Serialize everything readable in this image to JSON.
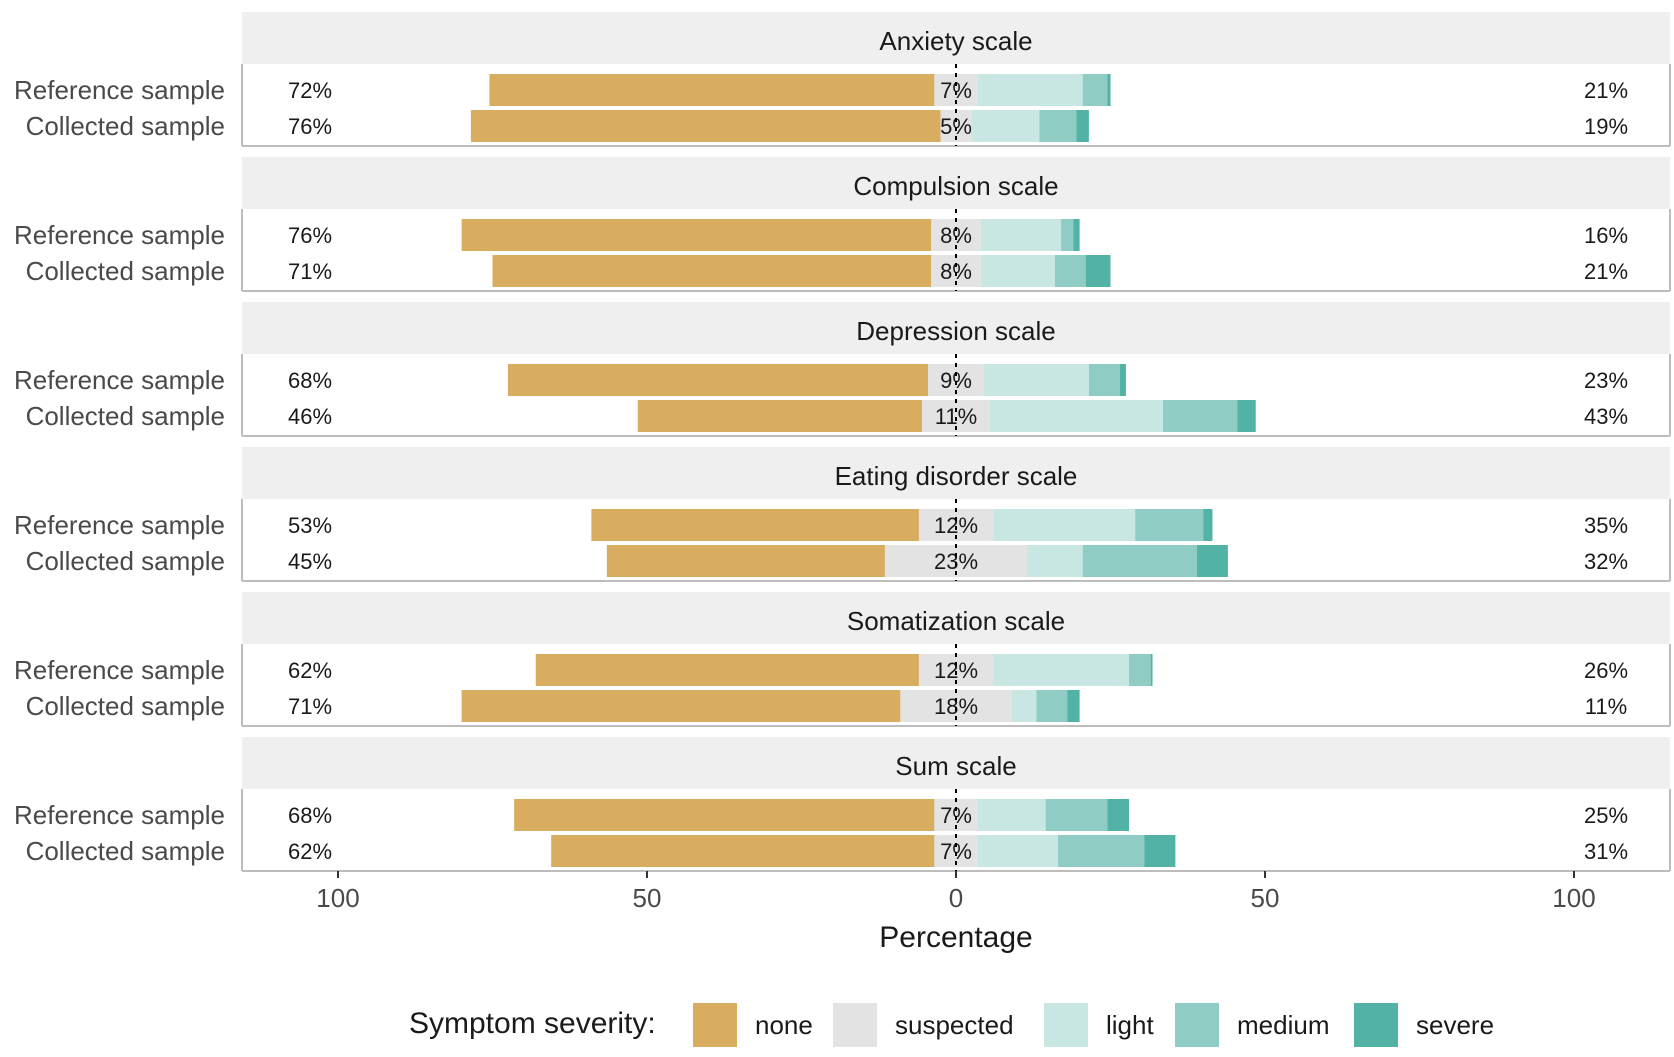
{
  "chart_data": {
    "type": "bar",
    "subtype": "diverging-stacked-bar",
    "xlabel": "Percentage",
    "x_ticks": [
      "100",
      "50",
      "0",
      "50",
      "100"
    ],
    "xlim": [
      -100,
      100
    ],
    "categories_order": [
      "none",
      "suspected",
      "light",
      "medium",
      "severe"
    ],
    "category_colors": {
      "none": "#d9ad5f",
      "suspected": "#e3e3e3",
      "light": "#c9e7e2",
      "medium": "#8fccc3",
      "severe": "#52b2a6"
    },
    "legend": {
      "title": "Symptom severity:",
      "placement": "bottom",
      "items": [
        {
          "key": "none",
          "label": "none"
        },
        {
          "key": "suspected",
          "label": "suspected"
        },
        {
          "key": "light",
          "label": "light"
        },
        {
          "key": "medium",
          "label": "medium"
        },
        {
          "key": "severe",
          "label": "severe"
        }
      ]
    },
    "panels": [
      {
        "title": "Anxiety scale",
        "rows": [
          {
            "label": "Reference sample",
            "left_pct": "72%",
            "mid_pct": "7%",
            "right_pct": "21%",
            "values": {
              "none": 72,
              "suspected": 7,
              "light": 17,
              "medium": 4,
              "severe": 0.5
            }
          },
          {
            "label": "Collected sample",
            "left_pct": "76%",
            "mid_pct": "5%",
            "right_pct": "19%",
            "values": {
              "none": 76,
              "suspected": 5,
              "light": 11,
              "medium": 6,
              "severe": 2
            }
          }
        ]
      },
      {
        "title": "Compulsion scale",
        "rows": [
          {
            "label": "Reference sample",
            "left_pct": "76%",
            "mid_pct": "8%",
            "right_pct": "16%",
            "values": {
              "none": 76,
              "suspected": 8,
              "light": 13,
              "medium": 2,
              "severe": 1
            }
          },
          {
            "label": "Collected sample",
            "left_pct": "71%",
            "mid_pct": "8%",
            "right_pct": "21%",
            "values": {
              "none": 71,
              "suspected": 8,
              "light": 12,
              "medium": 5,
              "severe": 4
            }
          }
        ]
      },
      {
        "title": "Depression scale",
        "rows": [
          {
            "label": "Reference sample",
            "left_pct": "68%",
            "mid_pct": "9%",
            "right_pct": "23%",
            "values": {
              "none": 68,
              "suspected": 9,
              "light": 17,
              "medium": 5,
              "severe": 1
            }
          },
          {
            "label": "Collected sample",
            "left_pct": "46%",
            "mid_pct": "11%",
            "right_pct": "43%",
            "values": {
              "none": 46,
              "suspected": 11,
              "light": 28,
              "medium": 12,
              "severe": 3
            }
          }
        ]
      },
      {
        "title": "Eating disorder scale",
        "rows": [
          {
            "label": "Reference sample",
            "left_pct": "53%",
            "mid_pct": "12%",
            "right_pct": "35%",
            "values": {
              "none": 53,
              "suspected": 12,
              "light": 23,
              "medium": 11,
              "severe": 1.5
            }
          },
          {
            "label": "Collected sample",
            "left_pct": "45%",
            "mid_pct": "23%",
            "right_pct": "32%",
            "values": {
              "none": 45,
              "suspected": 23,
              "light": 9,
              "medium": 18.5,
              "severe": 5
            }
          }
        ]
      },
      {
        "title": "Somatization scale",
        "rows": [
          {
            "label": "Reference sample",
            "left_pct": "62%",
            "mid_pct": "12%",
            "right_pct": "26%",
            "values": {
              "none": 62,
              "suspected": 12,
              "light": 22,
              "medium": 3.5,
              "severe": 0.3
            }
          },
          {
            "label": "Collected sample",
            "left_pct": "71%",
            "mid_pct": "18%",
            "right_pct": "11%",
            "values": {
              "none": 71,
              "suspected": 18,
              "light": 4,
              "medium": 5,
              "severe": 2
            }
          }
        ]
      },
      {
        "title": "Sum scale",
        "rows": [
          {
            "label": "Reference sample",
            "left_pct": "68%",
            "mid_pct": "7%",
            "right_pct": "25%",
            "values": {
              "none": 68,
              "suspected": 7,
              "light": 11,
              "medium": 10,
              "severe": 3.5
            }
          },
          {
            "label": "Collected sample",
            "left_pct": "62%",
            "mid_pct": "7%",
            "right_pct": "31%",
            "values": {
              "none": 62,
              "suspected": 7,
              "light": 13,
              "medium": 14,
              "severe": 5
            }
          }
        ]
      }
    ]
  }
}
